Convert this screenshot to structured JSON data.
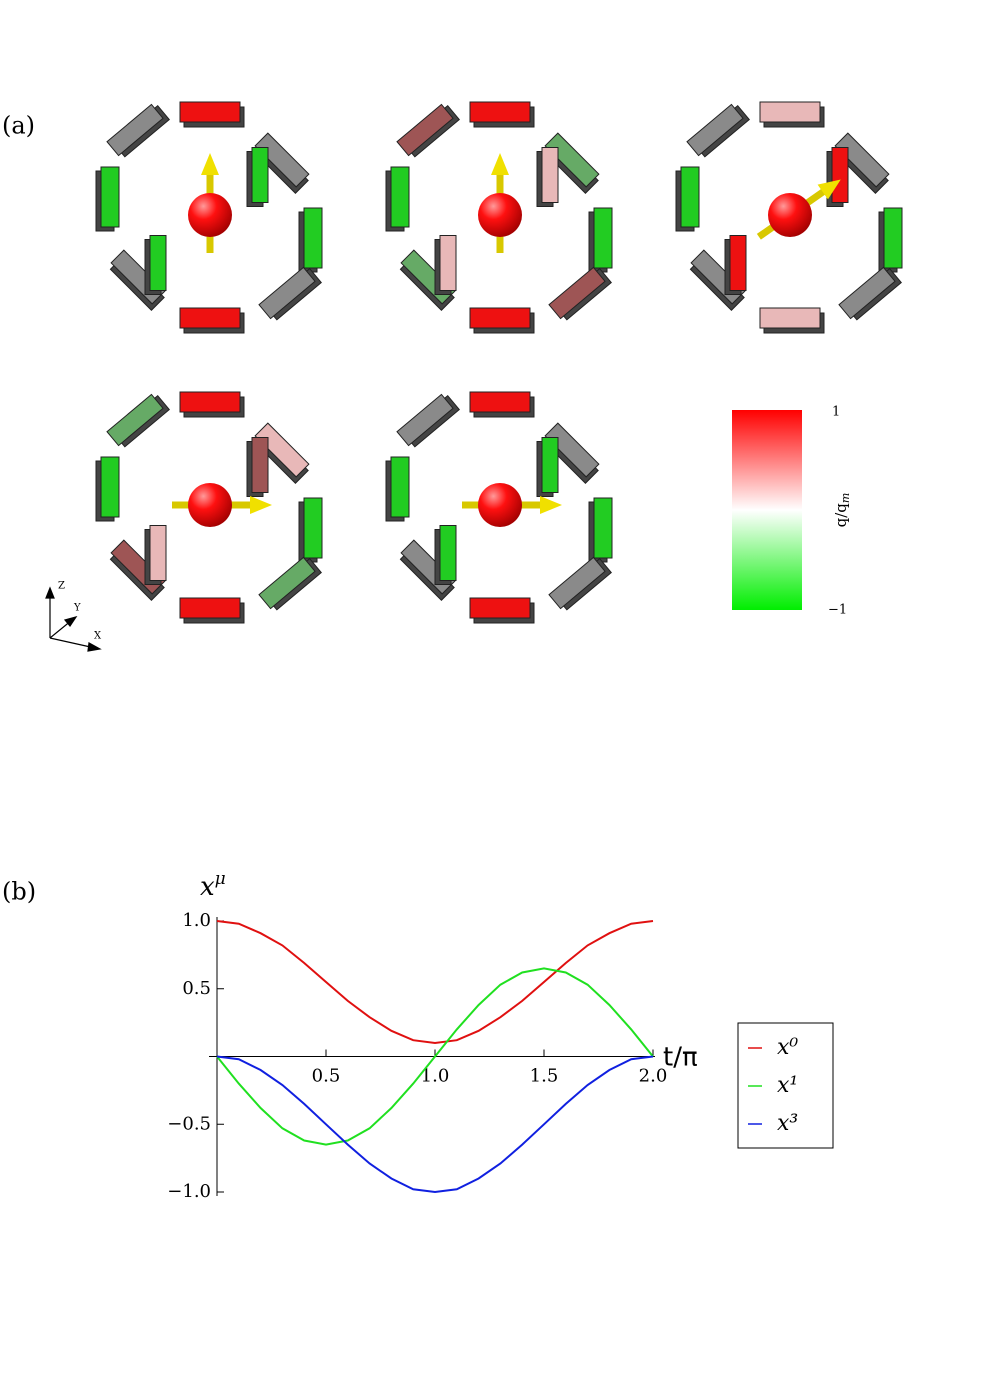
{
  "panel_a": {
    "label": "(a)",
    "colorbar": {
      "max_label": "1",
      "min_label": "−1",
      "title": {
        "base": "q/q",
        "sub": "m"
      }
    },
    "axes_icon": {
      "z": "Z",
      "y": "Y",
      "x": "X"
    }
  },
  "panel_b": {
    "label": "(b)"
  },
  "chart_data": {
    "type": "line",
    "x_label": "t/π",
    "y_label": {
      "base": "x",
      "sup": "μ"
    },
    "x": [
      0,
      0.1,
      0.2,
      0.3,
      0.4,
      0.5,
      0.6,
      0.7,
      0.8,
      0.9,
      1.0,
      1.1,
      1.2,
      1.3,
      1.4,
      1.5,
      1.6,
      1.7,
      1.8,
      1.9,
      2.0
    ],
    "series": [
      {
        "name": "x⁰",
        "color": "#e01010",
        "values": [
          1,
          0.98,
          0.91,
          0.82,
          0.69,
          0.55,
          0.41,
          0.29,
          0.19,
          0.12,
          0.1,
          0.12,
          0.19,
          0.29,
          0.41,
          0.55,
          0.69,
          0.82,
          0.91,
          0.98,
          1
        ]
      },
      {
        "name": "x¹",
        "color": "#20e020",
        "values": [
          0,
          -0.2,
          -0.38,
          -0.53,
          -0.62,
          -0.65,
          -0.62,
          -0.53,
          -0.38,
          -0.2,
          0,
          0.2,
          0.38,
          0.53,
          0.62,
          0.65,
          0.62,
          0.53,
          0.38,
          0.2,
          0
        ]
      },
      {
        "name": "x³",
        "color": "#1020e0",
        "values": [
          0,
          -0.02,
          -0.1,
          -0.21,
          -0.35,
          -0.5,
          -0.65,
          -0.79,
          -0.9,
          -0.98,
          -1,
          -0.98,
          -0.9,
          -0.79,
          -0.65,
          -0.5,
          -0.35,
          -0.21,
          -0.1,
          -0.02,
          0
        ]
      }
    ],
    "xlim": [
      0,
      2
    ],
    "ylim": [
      -1,
      1
    ],
    "xticks": [
      0.5,
      {
        "value": 1,
        "label": "1.0"
      },
      1.5,
      {
        "value": 2,
        "label": "2.0"
      }
    ],
    "yticks": [
      {
        "value": -1,
        "label": "−1.0"
      },
      {
        "value": -0.5,
        "label": "−0.5"
      },
      0.5,
      {
        "value": 1,
        "label": "1.0"
      }
    ],
    "legend": "right"
  }
}
